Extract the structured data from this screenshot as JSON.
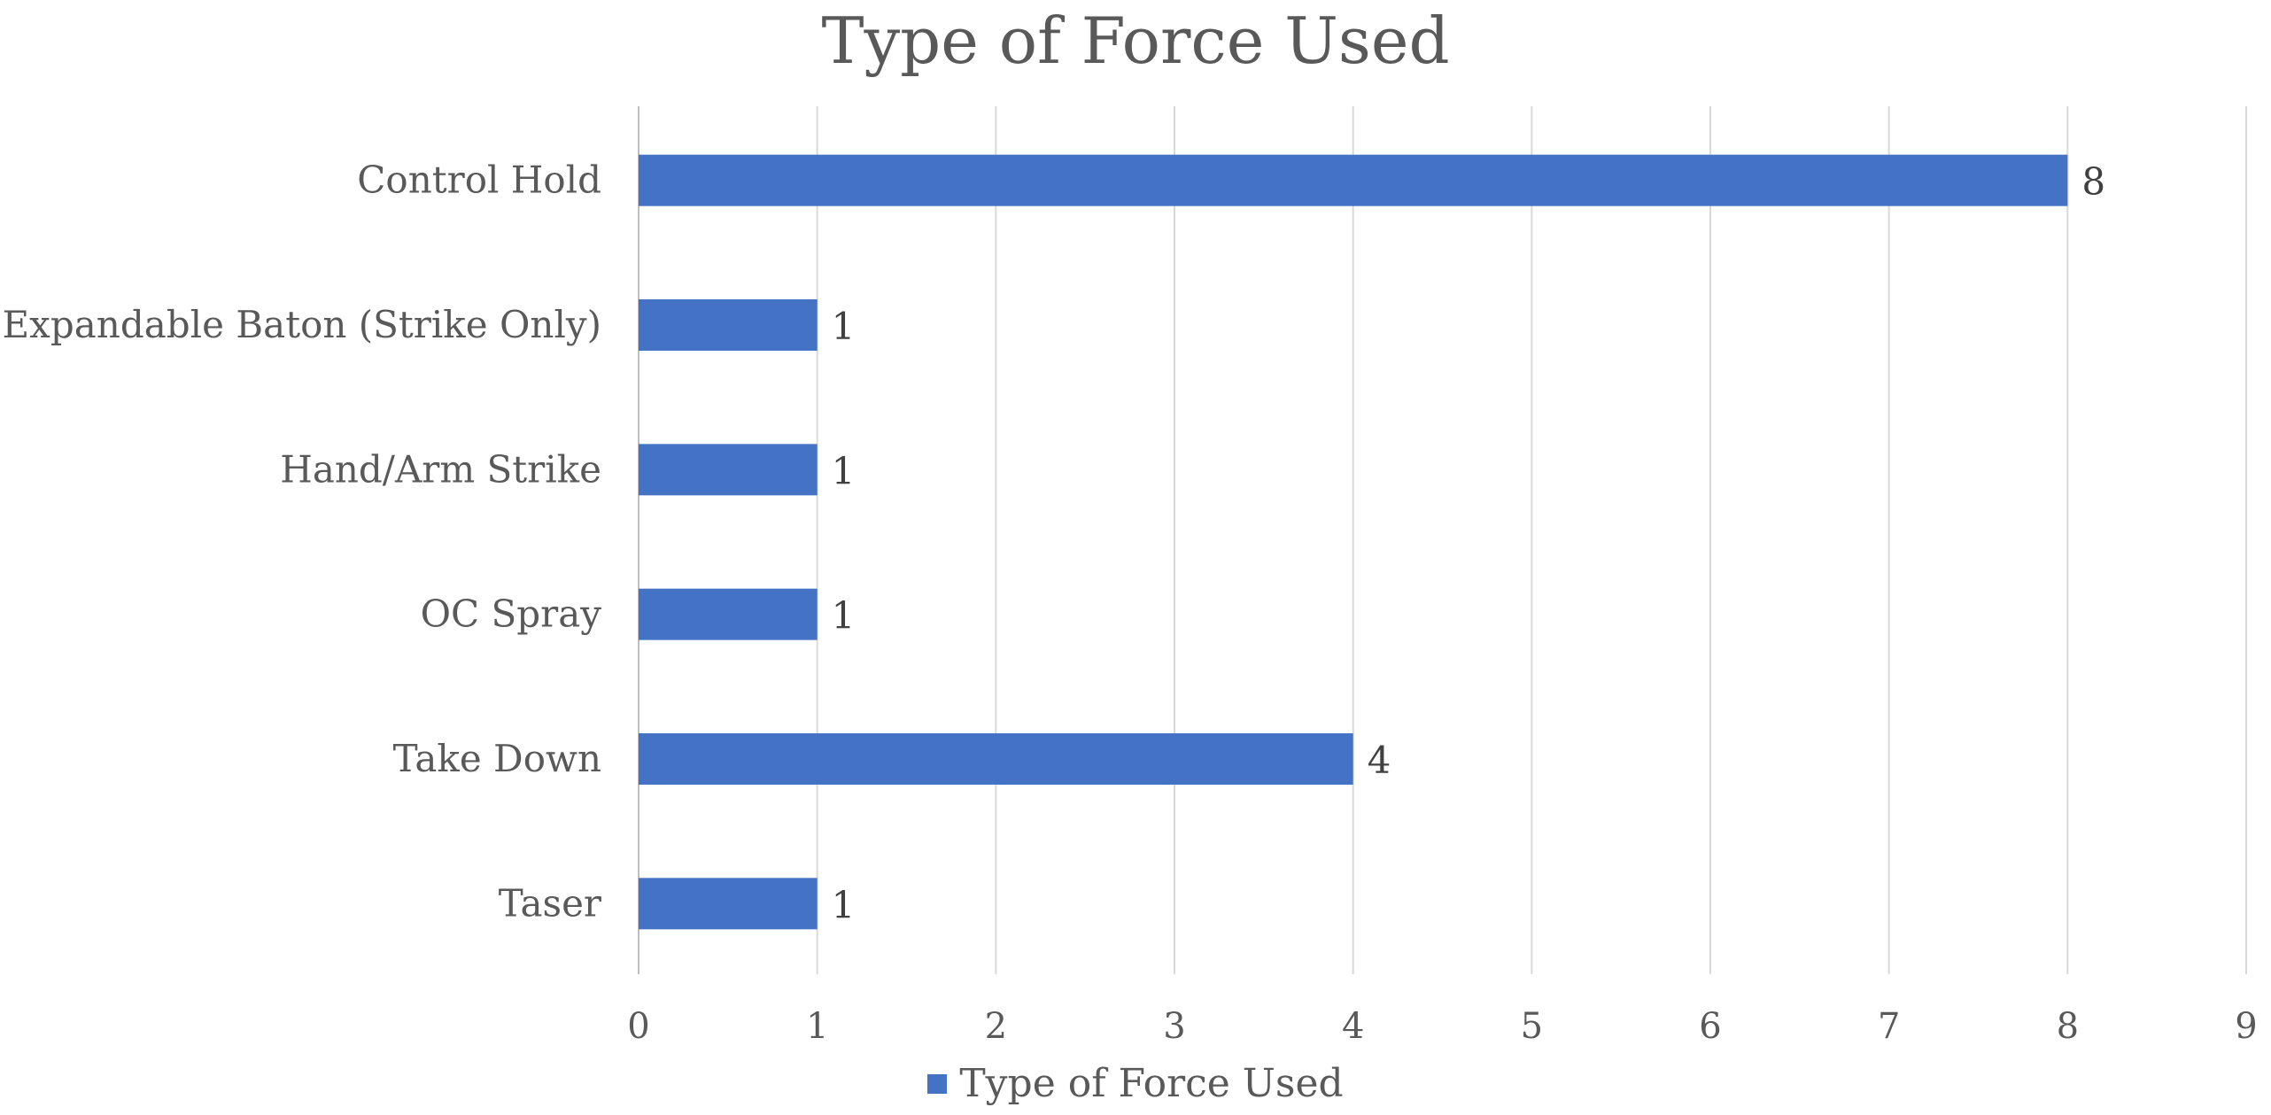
{
  "chart_data": {
    "type": "bar",
    "orientation": "horizontal",
    "title": "Type of Force Used",
    "categories": [
      "Control Hold",
      "Expandable Baton (Strike Only)",
      "Hand/Arm Strike",
      "OC Spray",
      "Take Down",
      "Taser"
    ],
    "series": [
      {
        "name": "Type of Force Used",
        "values": [
          8,
          1,
          1,
          1,
          4,
          1
        ],
        "color": "#4472C4"
      }
    ],
    "data_labels": [
      "8",
      "1",
      "1",
      "1",
      "4",
      "1"
    ],
    "xlim": [
      0,
      9
    ],
    "x_ticks": [
      "0",
      "1",
      "2",
      "3",
      "4",
      "5",
      "6",
      "7",
      "8",
      "9"
    ],
    "xlabel": "",
    "ylabel": "",
    "grid": true,
    "legend_position": "bottom"
  }
}
